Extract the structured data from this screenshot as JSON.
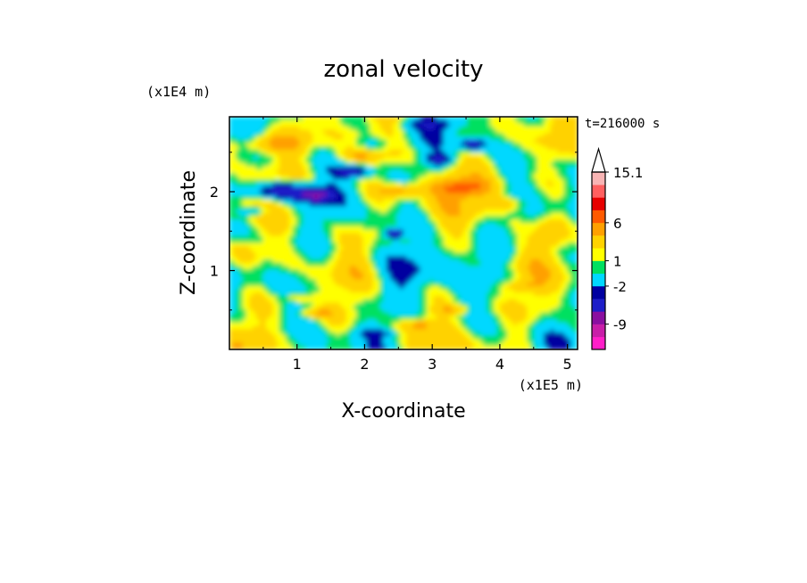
{
  "chart_data": {
    "type": "heatmap",
    "title": "zonal velocity",
    "xlabel": "X-coordinate",
    "ylabel": "Z-coordinate",
    "x_scale_label": "(x1E5 m)",
    "y_scale_label": "(x1E4 m)",
    "time_label": "t=216000 s",
    "xlim": [
      0,
      5.15
    ],
    "ylim": [
      0,
      2.95
    ],
    "x_ticks": [
      "1",
      "2",
      "3",
      "4",
      "5"
    ],
    "x_tick_values": [
      1,
      2,
      3,
      4,
      5
    ],
    "y_ticks": [
      "1",
      "2"
    ],
    "y_tick_values": [
      1,
      2
    ],
    "colorbar": {
      "labels": [
        "15.1",
        "6",
        "1",
        "-2",
        "-9"
      ],
      "label_values": [
        15.1,
        6,
        1,
        -2,
        -9
      ],
      "colors": [
        "#ff1fc8",
        "#c81ea8",
        "#8a0fa0",
        "#1e1ec8",
        "#0000a0",
        "#00d8ff",
        "#00e060",
        "#ffff00",
        "#ffd200",
        "#ffa000",
        "#ff5a00",
        "#e60000",
        "#ff6060",
        "#f8b4b4"
      ],
      "levels": [
        -16,
        -12,
        -9,
        -7,
        -4,
        -2,
        0,
        1,
        2,
        4,
        6,
        8,
        10,
        12.5,
        15.1
      ],
      "extend": "max"
    }
  }
}
